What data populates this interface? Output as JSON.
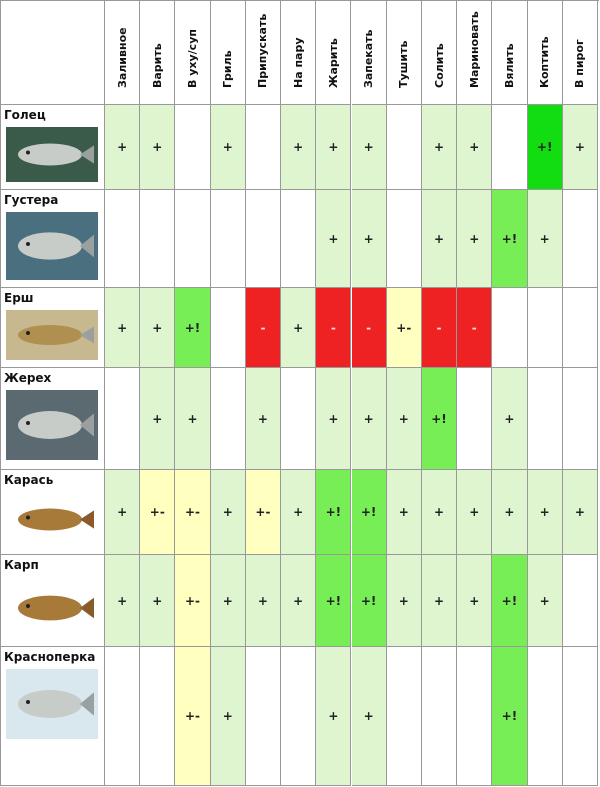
{
  "table": {
    "columns": [
      "Заливное",
      "Варить",
      "В уху/суп",
      "Гриль",
      "Припускать",
      "На пару",
      "Жарить",
      "Запекать",
      "Тушить",
      "Солить",
      "Мариновать",
      "Вялить",
      "Коптить",
      "В пирог"
    ],
    "rows": [
      {
        "name": "Голец",
        "cells": [
          "+",
          "+",
          null,
          "+",
          null,
          "+",
          "+",
          "+",
          null,
          "+",
          "+",
          null,
          "+!",
          "+"
        ],
        "colors": [
          "#dff5cf",
          "#dff5cf",
          null,
          "#dff5cf",
          null,
          "#dff5cf",
          "#dff5cf",
          "#dff5cf",
          null,
          "#dff5cf",
          "#dff5cf",
          null,
          "#11dd11",
          "#dff5cf"
        ]
      },
      {
        "name": "Густера",
        "cells": [
          null,
          null,
          null,
          null,
          null,
          null,
          "+",
          "+",
          null,
          "+",
          "+",
          "+!",
          "+",
          null
        ],
        "colors": [
          null,
          null,
          null,
          null,
          null,
          null,
          "#dff5cf",
          "#dff5cf",
          null,
          "#dff5cf",
          "#dff5cf",
          "#77ee55",
          "#dff5cf",
          null
        ]
      },
      {
        "name": "Ерш",
        "cells": [
          "+",
          "+",
          "+!",
          null,
          "-",
          "+",
          "-",
          "-",
          "+-",
          "-",
          "-",
          null,
          null,
          null
        ],
        "colors": [
          "#dff5cf",
          "#dff5cf",
          "#77ee55",
          null,
          "#ee2222",
          "#dff5cf",
          "#ee2222",
          "#ee2222",
          "#ffffc0",
          "#ee2222",
          "#ee2222",
          null,
          null,
          null
        ]
      },
      {
        "name": "Жерех",
        "cells": [
          null,
          "+",
          "+",
          null,
          "+",
          null,
          "+",
          "+",
          "+",
          "+!",
          null,
          "+",
          null,
          null
        ],
        "colors": [
          null,
          "#dff5cf",
          "#dff5cf",
          null,
          "#dff5cf",
          null,
          "#dff5cf",
          "#dff5cf",
          "#dff5cf",
          "#77ee55",
          null,
          "#dff5cf",
          null,
          null
        ]
      },
      {
        "name": "Карась",
        "cells": [
          "+",
          "+-",
          "+-",
          "+",
          "+-",
          "+",
          "+!",
          "+!",
          "+",
          "+",
          "+",
          "+",
          "+",
          "+"
        ],
        "colors": [
          "#dff5cf",
          "#ffffc0",
          "#ffffc0",
          "#dff5cf",
          "#ffffc0",
          "#dff5cf",
          "#77ee55",
          "#77ee55",
          "#dff5cf",
          "#dff5cf",
          "#dff5cf",
          "#dff5cf",
          "#dff5cf",
          "#dff5cf"
        ]
      },
      {
        "name": "Карп",
        "cells": [
          "+",
          "+",
          "+-",
          "+",
          "+",
          "+",
          "+!",
          "+!",
          "+",
          "+",
          "+",
          "+!",
          "+",
          null
        ],
        "colors": [
          "#dff5cf",
          "#dff5cf",
          "#ffffc0",
          "#dff5cf",
          "#dff5cf",
          "#dff5cf",
          "#77ee55",
          "#77ee55",
          "#dff5cf",
          "#dff5cf",
          "#dff5cf",
          "#77ee55",
          "#dff5cf",
          null
        ]
      },
      {
        "name": "Красноперка",
        "cells": [
          null,
          null,
          "+-",
          "+",
          null,
          null,
          "+",
          "+",
          null,
          null,
          null,
          "+!",
          null,
          null
        ],
        "colors": [
          null,
          null,
          "#ffffc0",
          "#dff5cf",
          null,
          null,
          "#dff5cf",
          "#dff5cf",
          null,
          null,
          null,
          "#77ee55",
          null,
          null
        ]
      }
    ]
  }
}
